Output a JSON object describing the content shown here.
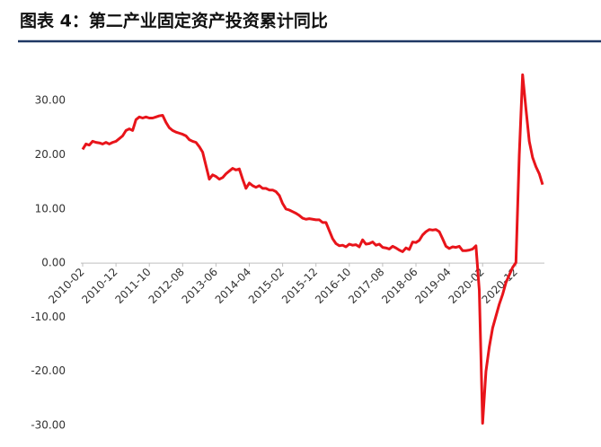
{
  "chart_data": {
    "type": "line",
    "title": "图表 4：第二产业固定资产投资累计同比",
    "categories": [
      "2010-02",
      null,
      null,
      null,
      null,
      null,
      null,
      null,
      null,
      null,
      "2010-12",
      null,
      null,
      null,
      null,
      null,
      null,
      null,
      null,
      null,
      "2011-10",
      null,
      null,
      null,
      null,
      null,
      null,
      null,
      null,
      null,
      "2012-08",
      null,
      null,
      null,
      null,
      null,
      null,
      null,
      null,
      null,
      "2013-06",
      null,
      null,
      null,
      null,
      null,
      null,
      null,
      null,
      null,
      "2014-04",
      null,
      null,
      null,
      null,
      null,
      null,
      null,
      null,
      null,
      "2015-02",
      null,
      null,
      null,
      null,
      null,
      null,
      null,
      null,
      null,
      "2015-12",
      null,
      null,
      null,
      null,
      null,
      null,
      null,
      null,
      null,
      "2016-10",
      null,
      null,
      null,
      null,
      null,
      null,
      null,
      null,
      null,
      "2017-08",
      null,
      null,
      null,
      null,
      null,
      null,
      null,
      null,
      null,
      "2018-06",
      null,
      null,
      null,
      null,
      null,
      null,
      null,
      null,
      null,
      "2019-04",
      null,
      null,
      null,
      null,
      null,
      null,
      null,
      null,
      null,
      "2020-02",
      null,
      null,
      null,
      null,
      null,
      null,
      null,
      null,
      null,
      "2020-12",
      null,
      null,
      null,
      null,
      null,
      null,
      null,
      null
    ],
    "values": [
      21,
      22,
      21.8,
      22.5,
      22.3,
      22.2,
      22,
      22.3,
      22,
      22.3,
      22.5,
      23,
      23.5,
      24.5,
      24.8,
      24.5,
      26.5,
      27,
      26.8,
      27,
      26.8,
      26.8,
      27,
      27.2,
      27.3,
      26,
      25,
      24.5,
      24.2,
      24,
      23.8,
      23.5,
      22.8,
      22.5,
      22.3,
      21.5,
      20.5,
      18,
      15.5,
      16.3,
      16,
      15.5,
      15.8,
      16.5,
      17,
      17.5,
      17.2,
      17.4,
      15.5,
      13.8,
      14.8,
      14.3,
      14,
      14.3,
      13.8,
      13.8,
      13.5,
      13.5,
      13.2,
      12.5,
      11,
      10,
      9.8,
      9.5,
      9.2,
      8.8,
      8.3,
      8.1,
      8.2,
      8.1,
      8,
      8,
      7.5,
      7.5,
      6,
      4.5,
      3.6,
      3.2,
      3.3,
      3,
      3.5,
      3.3,
      3.4,
      3,
      4.3,
      3.5,
      3.6,
      3.9,
      3.3,
      3.5,
      2.9,
      2.8,
      2.6,
      3.1,
      2.8,
      2.4,
      2.1,
      2.8,
      2.5,
      3.9,
      3.8,
      4.2,
      5.2,
      5.8,
      6.2,
      6.1,
      6.2,
      5.8,
      4.5,
      3.1,
      2.7,
      3,
      2.9,
      3.1,
      2.3,
      2.3,
      2.4,
      2.6,
      3.2,
      -5,
      -29.6,
      -20,
      -15.5,
      -12,
      -9.8,
      -7.6,
      -5.8,
      -3.6,
      -2.2,
      -0.8,
      0.1,
      20,
      34.8,
      28.5,
      22.5,
      19.5,
      17.8,
      16.5,
      14.5
    ],
    "color": "#e8141a",
    "ylim": [
      -30,
      40
    ],
    "yticks": [
      {
        "value": -30,
        "label": "-30.00"
      },
      {
        "value": -20,
        "label": "-20.00"
      },
      {
        "value": -10,
        "label": "-10.00"
      },
      {
        "value": 0,
        "label": "0.00"
      },
      {
        "value": 10,
        "label": "10.00"
      },
      {
        "value": 20,
        "label": "20.00"
      },
      {
        "value": 30,
        "label": "30.00"
      }
    ]
  }
}
